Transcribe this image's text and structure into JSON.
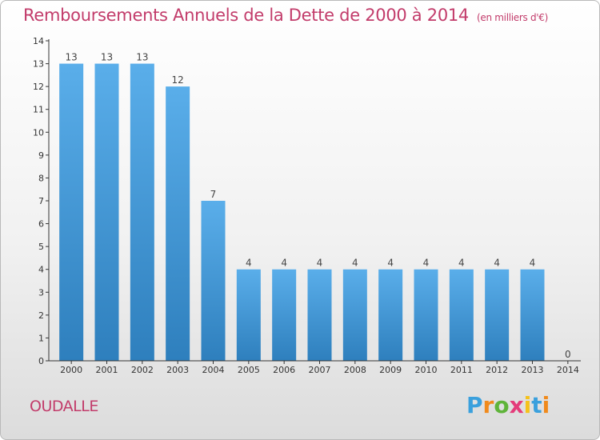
{
  "title": "Remboursements Annuels de la Dette de 2000 à 2014",
  "unit": "(en milliers d'€)",
  "commune": "OUDALLE",
  "logo": {
    "letters": [
      "P",
      "r",
      "o",
      "x",
      "i",
      "t",
      "i"
    ]
  },
  "colors": {
    "accent": "#c23b6a",
    "bar_top": "#5aaeea",
    "bar_bottom": "#2e7fbd",
    "axis": "#333333"
  },
  "chart_data": {
    "type": "bar",
    "categories": [
      "2000",
      "2001",
      "2002",
      "2003",
      "2004",
      "2005",
      "2006",
      "2007",
      "2008",
      "2009",
      "2010",
      "2011",
      "2012",
      "2013",
      "2014"
    ],
    "values": [
      13,
      13,
      13,
      12,
      7,
      4,
      4,
      4,
      4,
      4,
      4,
      4,
      4,
      4,
      0
    ],
    "ylim": [
      0,
      14
    ],
    "yticks": [
      0,
      1,
      2,
      3,
      4,
      5,
      6,
      7,
      8,
      9,
      10,
      11,
      12,
      13,
      14
    ],
    "grid": false,
    "data_labels": true
  }
}
